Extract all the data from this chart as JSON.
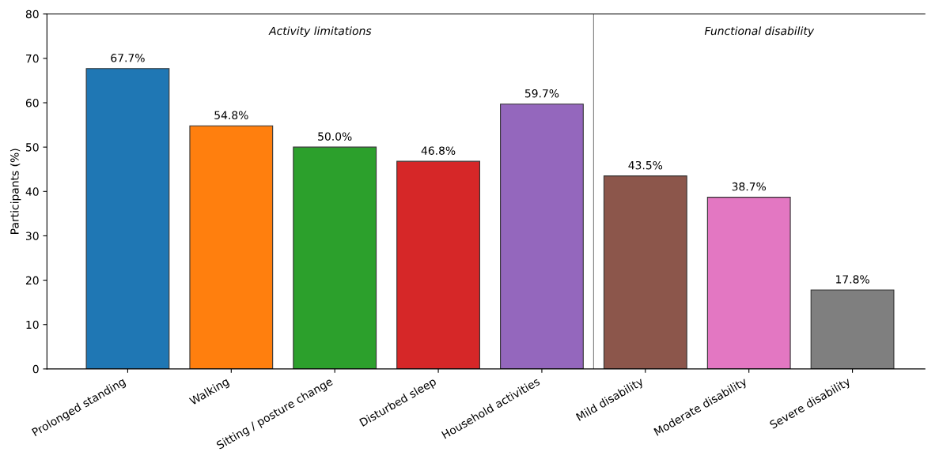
{
  "chart_data": {
    "type": "bar",
    "ylabel": "Participants (%)",
    "categories": [
      "Prolonged standing",
      "Walking",
      "Sitting / posture change",
      "Disturbed sleep",
      "Household activities",
      "Mild disability",
      "Moderate disability",
      "Severe disability"
    ],
    "values": [
      67.7,
      54.8,
      50.0,
      46.8,
      59.7,
      43.5,
      38.7,
      17.8
    ],
    "colors": [
      "#1f77b4",
      "#ff7f0e",
      "#2ca02c",
      "#d62728",
      "#9467bd",
      "#8c564b",
      "#e377c2",
      "#7f7f7f"
    ],
    "value_labels": [
      "67.7%",
      "54.8%",
      "50.0%",
      "46.8%",
      "59.7%",
      "43.5%",
      "38.7%",
      "17.8%"
    ],
    "ylim": [
      0,
      80
    ],
    "yticks": [
      0,
      10,
      20,
      30,
      40,
      50,
      60,
      70,
      80
    ],
    "annotations": [
      "Activity limitations",
      "Functional disability"
    ],
    "grid": false,
    "legend": false
  }
}
